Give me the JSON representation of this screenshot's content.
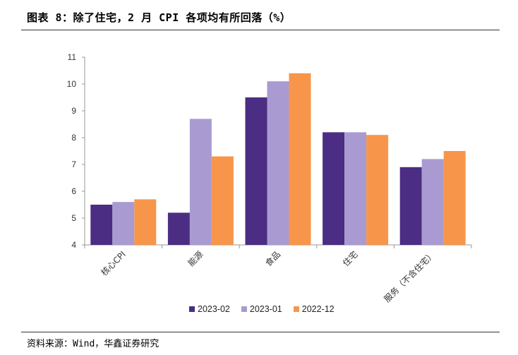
{
  "header": {
    "title": "图表 8：除了住宅，2 月 CPI 各项均有所回落（%）"
  },
  "footer": {
    "source": "资料来源：Wind，华鑫证券研究"
  },
  "colors": {
    "series_2023_02": "#4b2d83",
    "series_2023_01": "#a99bd1",
    "series_2022_12": "#f7964a"
  },
  "chart_data": {
    "type": "bar",
    "title": "除了住宅，2 月 CPI 各项均有所回落（%）",
    "xlabel": "",
    "ylabel": "",
    "ylim": [
      4,
      11
    ],
    "yticks": [
      4,
      5,
      6,
      7,
      8,
      9,
      10,
      11
    ],
    "grid": false,
    "legend": "bottom",
    "categories": [
      "核心CPI",
      "能源",
      "食品",
      "住宅",
      "服务（不含住宅）"
    ],
    "series": [
      {
        "name": "2023-02",
        "values": [
          5.5,
          5.2,
          9.5,
          8.2,
          6.9
        ]
      },
      {
        "name": "2023-01",
        "values": [
          5.6,
          8.7,
          10.1,
          8.2,
          7.2
        ]
      },
      {
        "name": "2022-12",
        "values": [
          5.7,
          7.3,
          10.4,
          8.1,
          7.5
        ]
      }
    ]
  }
}
